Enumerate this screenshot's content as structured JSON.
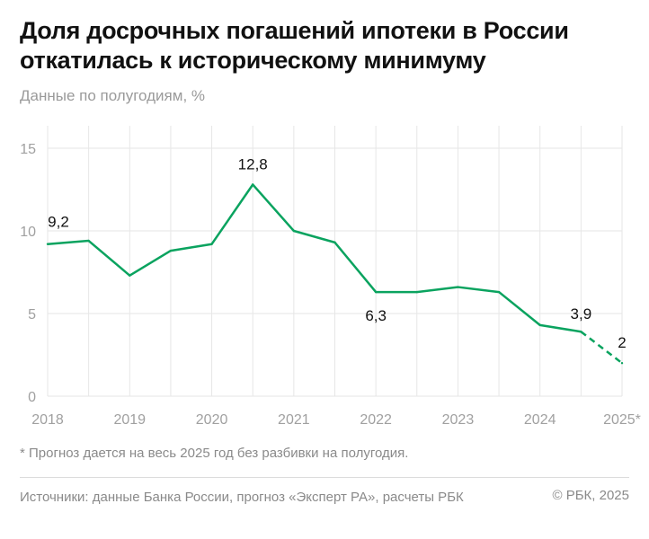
{
  "header": {
    "title": "Доля досрочных погашений ипотеки в России откатилась к историческому минимуму",
    "subtitle": "Данные по полугодиям, %"
  },
  "chart_data": {
    "type": "line",
    "title": "Доля досрочных погашений ипотеки в России откатилась к историческому минимуму",
    "ylabel": "Данные по полугодиям, %",
    "ylim": [
      0,
      15
    ],
    "yticks": [
      "0",
      "5",
      "10",
      "15"
    ],
    "xticks": [
      "2018",
      "2019",
      "2020",
      "2021",
      "2022",
      "2023",
      "2024",
      "2025*"
    ],
    "grid": true,
    "color": "#0aa35f",
    "series": [
      {
        "x": [
          "2018 H1",
          "2018 H2",
          "2019 H1",
          "2019 H2",
          "2020 H1",
          "2020 H2",
          "2021 H1",
          "2021 H2",
          "2022 H1",
          "2022 H2",
          "2023 H1",
          "2023 H2",
          "2024 H1",
          "2024 H2",
          "2025*"
        ],
        "values": [
          9.2,
          9.4,
          7.3,
          8.8,
          9.2,
          12.8,
          10.0,
          9.3,
          6.3,
          6.3,
          6.6,
          6.3,
          4.3,
          3.9,
          2
        ],
        "forecast_from_index": 13
      }
    ],
    "data_labels": [
      {
        "index": 0,
        "text": "9,2"
      },
      {
        "index": 5,
        "text": "12,8"
      },
      {
        "index": 8,
        "text": "6,3"
      },
      {
        "index": 13,
        "text": "3,9"
      },
      {
        "index": 14,
        "text": "2"
      }
    ]
  },
  "footer": {
    "note": "* Прогноз дается на весь 2025 год без разбивки на полугодия.",
    "source": "Источники: данные Банка России, прогноз «Эксперт РА», расчеты РБК",
    "copyright": "© РБК, 2025"
  }
}
